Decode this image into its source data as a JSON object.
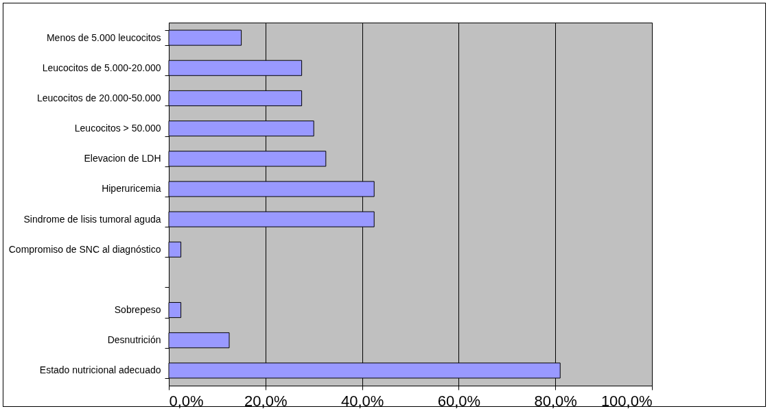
{
  "chart_data": {
    "type": "bar",
    "orientation": "horizontal",
    "categories": [
      "Menos de 5.000 leucocitos",
      "Leucocitos de 5.000-20.000",
      "Leucocitos de 20.000-50.000",
      "Leucocitos > 50.000",
      "Elevacion de LDH",
      "Hiperuricemia",
      "Sindrome de lisis tumoral aguda",
      "Compromiso de SNC al diagnóstico",
      null,
      "Sobrepeso",
      "Desnutrición",
      "Estado nutricional adecuado"
    ],
    "values": [
      15,
      27.5,
      27.5,
      30,
      32.5,
      42.5,
      42.5,
      2.5,
      null,
      2.5,
      12.5,
      81
    ],
    "color": "#9999ff",
    "xlim": [
      0,
      100
    ],
    "xticks": [
      {
        "value": 0,
        "label": "0,0%"
      },
      {
        "value": 20,
        "label": "20,0%"
      },
      {
        "value": 40,
        "label": "40,0%"
      },
      {
        "value": 60,
        "label": "60,0%"
      },
      {
        "value": 80,
        "label": "80,0%"
      },
      {
        "value": 100,
        "label": "100,0%"
      }
    ],
    "grid": "x"
  }
}
